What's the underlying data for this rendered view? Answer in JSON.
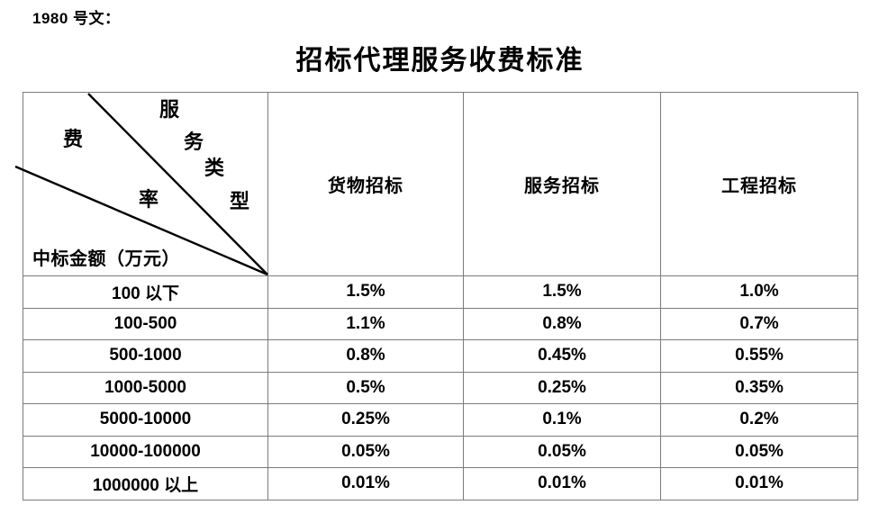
{
  "doc_label": "1980 号文：",
  "title": "招标代理服务收费标准",
  "table": {
    "corner": {
      "fee_char_1": "费",
      "fee_char_2": "率",
      "type_char_1": "服",
      "type_char_2": "务",
      "type_char_3": "类",
      "type_char_4": "型",
      "row_axis_label": "中标金额（万元）"
    },
    "columns": [
      "货物招标",
      "服务招标",
      "工程招标"
    ],
    "rows": [
      {
        "range": "100 以下",
        "values": [
          "1.5%",
          "1.5%",
          "1.0%"
        ]
      },
      {
        "range": "100-500",
        "values": [
          "1.1%",
          "0.8%",
          "0.7%"
        ]
      },
      {
        "range": "500-1000",
        "values": [
          "0.8%",
          "0.45%",
          "0.55%"
        ]
      },
      {
        "range": "1000-5000",
        "values": [
          "0.5%",
          "0.25%",
          "0.35%"
        ]
      },
      {
        "range": "5000-10000",
        "values": [
          "0.25%",
          "0.1%",
          "0.2%"
        ]
      },
      {
        "range": "10000-100000",
        "values": [
          "0.05%",
          "0.05%",
          "0.05%"
        ]
      },
      {
        "range": "1000000 以上",
        "values": [
          "0.01%",
          "0.01%",
          "0.01%"
        ]
      }
    ]
  },
  "colors": {
    "border": "#7b7b7b",
    "diagonal": "#000000",
    "text": "#000000",
    "background": "#ffffff"
  }
}
